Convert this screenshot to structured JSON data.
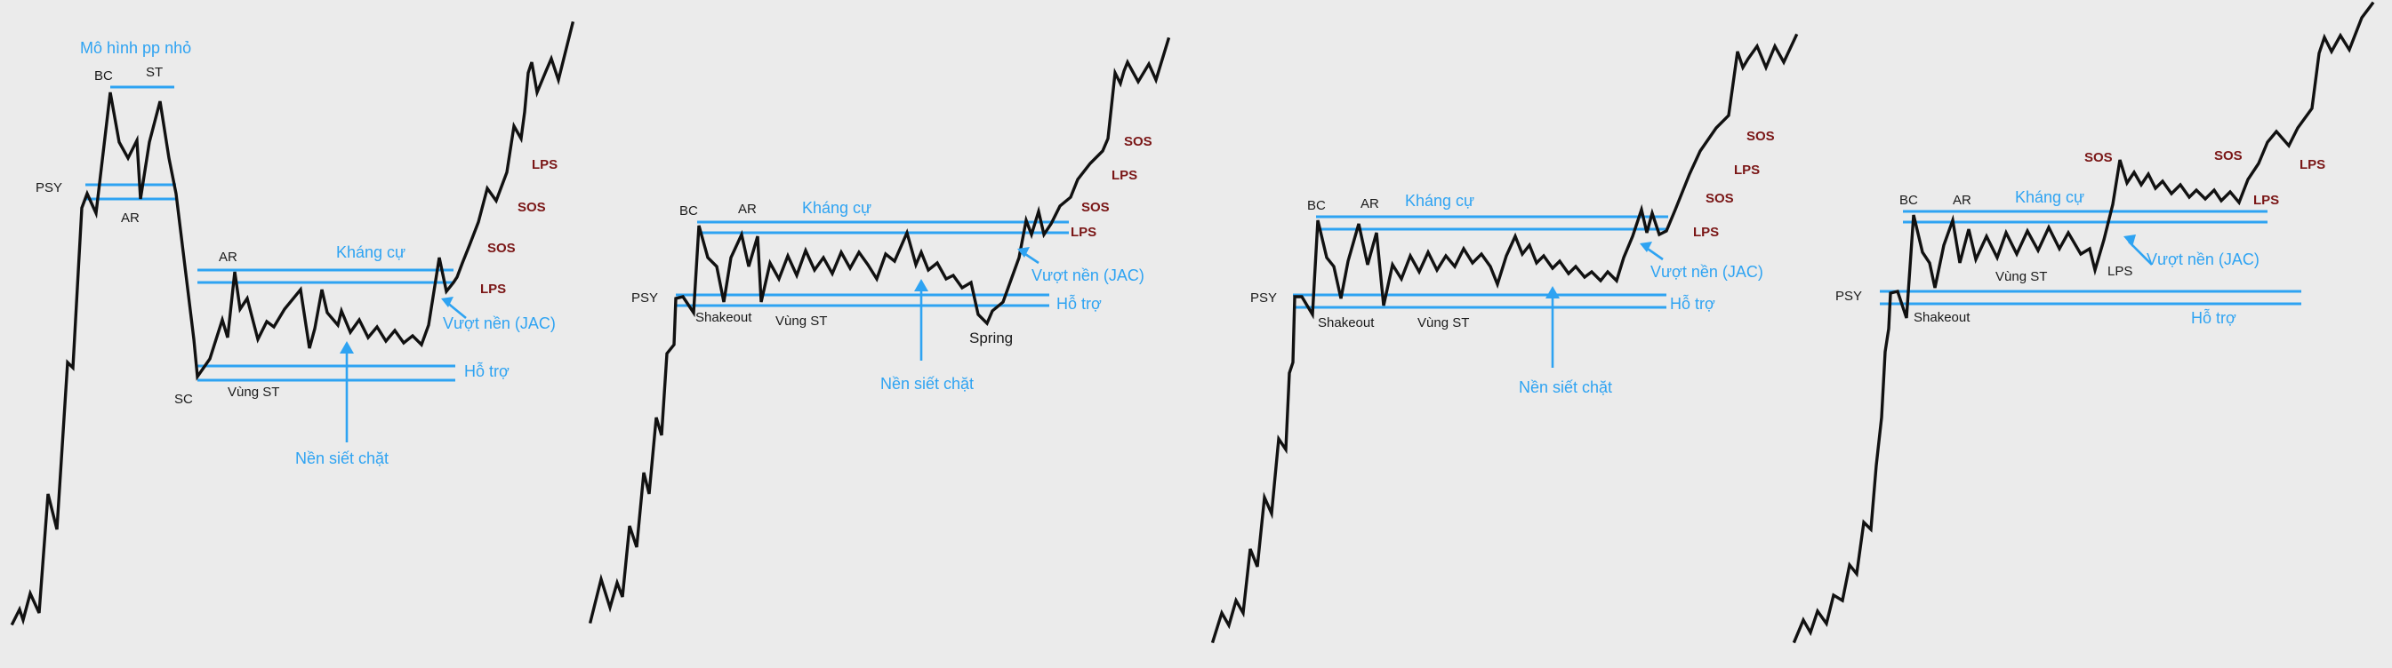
{
  "colors": {
    "background": "#ebebeb",
    "price_line": "#111111",
    "level_line": "#2ea3f2",
    "blue_text": "#2ea3f2",
    "event_label": "#7a1616",
    "phase_label": "#1a1a1a"
  },
  "panel1": {
    "title": "Mô hình pp nhỏ",
    "psy": "PSY",
    "bc": "BC",
    "st": "ST",
    "ar_top": "AR",
    "ar": "AR",
    "resistance": "Kháng cự",
    "jac": "Vượt nền (JAC)",
    "support": "Hỗ trợ",
    "sc": "SC",
    "range": "Vùng ST",
    "coil": "Nền siết chặt",
    "sos_low": "SOS",
    "lps": "LPS",
    "sos_high": "SOS"
  },
  "panel2": {
    "bc": "BC",
    "ar": "AR",
    "resistance": "Kháng cự",
    "psy": "PSY",
    "shakeout": "Shakeout",
    "range": "Vùng ST",
    "spring": "Spring",
    "coil": "Nền siết chặt",
    "support": "Hỗ trợ",
    "jac": "Vượt nền (JAC)",
    "lps_low": "LPS",
    "sos_low": "SOS",
    "lps_high": "LPS",
    "sos_high": "SOS"
  },
  "panel3": {
    "bc": "BC",
    "ar": "AR",
    "resistance": "Kháng cự",
    "psy": "PSY",
    "shakeout": "Shakeout",
    "range": "Vùng ST",
    "coil": "Nền siết chặt",
    "support": "Hỗ trợ",
    "jac": "Vượt nền (JAC)",
    "lps_low": "LPS",
    "sos_low": "SOS",
    "lps_high": "LPS",
    "sos_high": "SOS"
  },
  "panel4": {
    "bc": "BC",
    "ar": "AR",
    "resistance": "Kháng cự",
    "psy": "PSY",
    "shakeout": "Shakeout",
    "range": "Vùng ST",
    "lps_mid": "LPS",
    "jac": "Vượt nền (JAC)",
    "support": "Hỗ trợ",
    "sos_left": "SOS",
    "sos_right": "SOS",
    "lps_right": "LPS",
    "lps_top": "LPS"
  }
}
